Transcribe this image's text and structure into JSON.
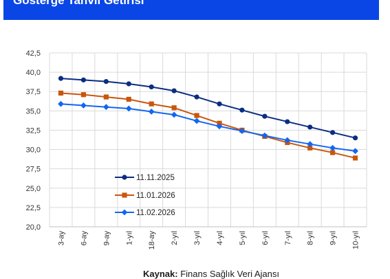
{
  "header": {
    "title": "Gösterge Tahvil Getirisi"
  },
  "footer": {
    "source_label": "Kaynak:",
    "source_text": "Finans Sağlık Veri Ajansı"
  },
  "chart_data": {
    "type": "line",
    "categories": [
      "3-ay",
      "6-ay",
      "9-ay",
      "1-yıl",
      "18-ay",
      "2-yıl",
      "3-yıl",
      "4-yıl",
      "5-yıl",
      "6-yıl",
      "7-yıl",
      "8-yıl",
      "9-yıl",
      "10-yıl"
    ],
    "ylim": [
      20.0,
      42.5
    ],
    "yticks": [
      "20,0",
      "22,5",
      "25,0",
      "27,5",
      "30,0",
      "32,5",
      "35,0",
      "37,5",
      "40,0",
      "42,5"
    ],
    "grid": true,
    "legend_position": "lower-left",
    "series": [
      {
        "name": "11.11.2025",
        "color": "#0b2d82",
        "marker": "circle",
        "values": [
          39.2,
          39.0,
          38.8,
          38.5,
          38.1,
          37.6,
          36.8,
          35.9,
          35.1,
          34.3,
          33.6,
          32.9,
          32.2,
          31.5
        ]
      },
      {
        "name": "11.01.2026",
        "color": "#c8560d",
        "marker": "square",
        "values": [
          37.3,
          37.1,
          36.8,
          36.5,
          35.9,
          35.4,
          34.4,
          33.4,
          32.5,
          31.7,
          30.9,
          30.2,
          29.6,
          28.9
        ]
      },
      {
        "name": "11.02.2026",
        "color": "#1266f1",
        "marker": "diamond",
        "values": [
          35.9,
          35.7,
          35.5,
          35.3,
          34.9,
          34.5,
          33.7,
          33.0,
          32.4,
          31.8,
          31.2,
          30.7,
          30.2,
          29.8
        ]
      }
    ]
  }
}
